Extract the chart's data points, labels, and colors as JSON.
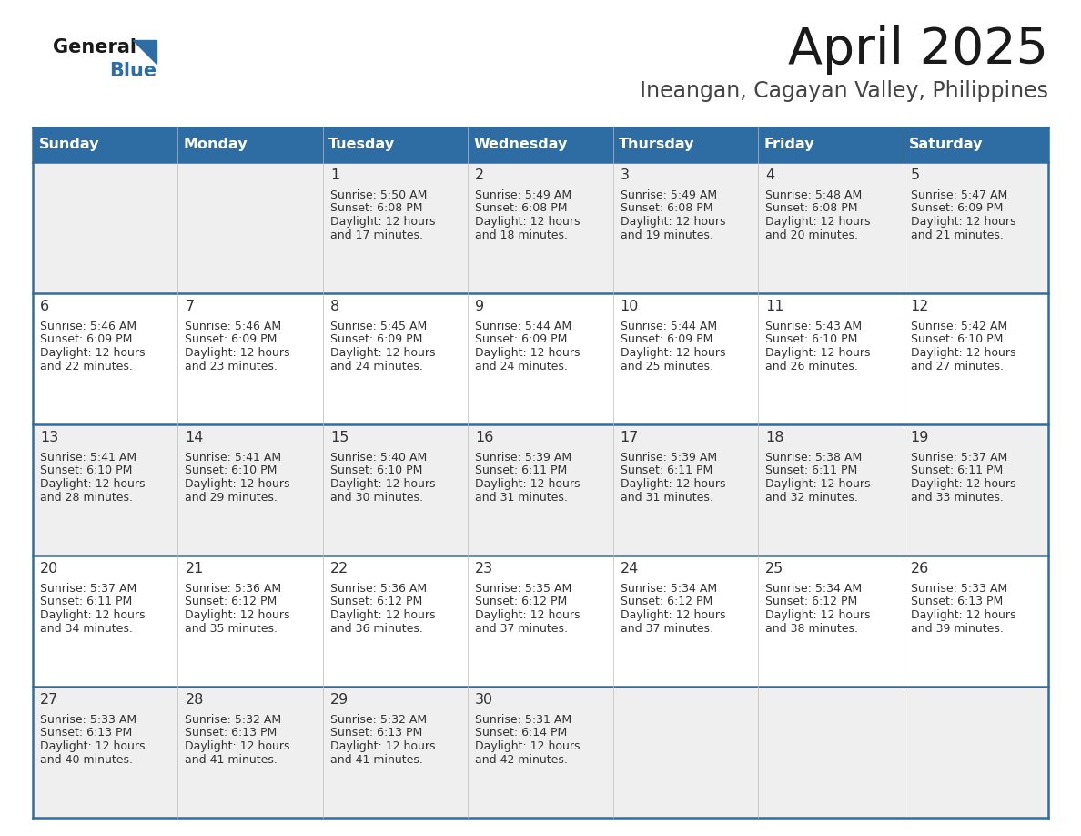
{
  "title": "April 2025",
  "subtitle": "Ineangan, Cagayan Valley, Philippines",
  "header_bg": "#2E6DA4",
  "header_text_color": "#FFFFFF",
  "cell_bg_odd": "#EFEFEF",
  "cell_bg_even": "#FFFFFF",
  "border_color": "#2E6DA4",
  "text_color": "#333333",
  "days_of_week": [
    "Sunday",
    "Monday",
    "Tuesday",
    "Wednesday",
    "Thursday",
    "Friday",
    "Saturday"
  ],
  "weeks": [
    [
      {
        "day": "",
        "sunrise": "",
        "sunset": "",
        "daylight": ""
      },
      {
        "day": "",
        "sunrise": "",
        "sunset": "",
        "daylight": ""
      },
      {
        "day": "1",
        "sunrise": "Sunrise: 5:50 AM",
        "sunset": "Sunset: 6:08 PM",
        "daylight": "Daylight: 12 hours\nand 17 minutes."
      },
      {
        "day": "2",
        "sunrise": "Sunrise: 5:49 AM",
        "sunset": "Sunset: 6:08 PM",
        "daylight": "Daylight: 12 hours\nand 18 minutes."
      },
      {
        "day": "3",
        "sunrise": "Sunrise: 5:49 AM",
        "sunset": "Sunset: 6:08 PM",
        "daylight": "Daylight: 12 hours\nand 19 minutes."
      },
      {
        "day": "4",
        "sunrise": "Sunrise: 5:48 AM",
        "sunset": "Sunset: 6:08 PM",
        "daylight": "Daylight: 12 hours\nand 20 minutes."
      },
      {
        "day": "5",
        "sunrise": "Sunrise: 5:47 AM",
        "sunset": "Sunset: 6:09 PM",
        "daylight": "Daylight: 12 hours\nand 21 minutes."
      }
    ],
    [
      {
        "day": "6",
        "sunrise": "Sunrise: 5:46 AM",
        "sunset": "Sunset: 6:09 PM",
        "daylight": "Daylight: 12 hours\nand 22 minutes."
      },
      {
        "day": "7",
        "sunrise": "Sunrise: 5:46 AM",
        "sunset": "Sunset: 6:09 PM",
        "daylight": "Daylight: 12 hours\nand 23 minutes."
      },
      {
        "day": "8",
        "sunrise": "Sunrise: 5:45 AM",
        "sunset": "Sunset: 6:09 PM",
        "daylight": "Daylight: 12 hours\nand 24 minutes."
      },
      {
        "day": "9",
        "sunrise": "Sunrise: 5:44 AM",
        "sunset": "Sunset: 6:09 PM",
        "daylight": "Daylight: 12 hours\nand 24 minutes."
      },
      {
        "day": "10",
        "sunrise": "Sunrise: 5:44 AM",
        "sunset": "Sunset: 6:09 PM",
        "daylight": "Daylight: 12 hours\nand 25 minutes."
      },
      {
        "day": "11",
        "sunrise": "Sunrise: 5:43 AM",
        "sunset": "Sunset: 6:10 PM",
        "daylight": "Daylight: 12 hours\nand 26 minutes."
      },
      {
        "day": "12",
        "sunrise": "Sunrise: 5:42 AM",
        "sunset": "Sunset: 6:10 PM",
        "daylight": "Daylight: 12 hours\nand 27 minutes."
      }
    ],
    [
      {
        "day": "13",
        "sunrise": "Sunrise: 5:41 AM",
        "sunset": "Sunset: 6:10 PM",
        "daylight": "Daylight: 12 hours\nand 28 minutes."
      },
      {
        "day": "14",
        "sunrise": "Sunrise: 5:41 AM",
        "sunset": "Sunset: 6:10 PM",
        "daylight": "Daylight: 12 hours\nand 29 minutes."
      },
      {
        "day": "15",
        "sunrise": "Sunrise: 5:40 AM",
        "sunset": "Sunset: 6:10 PM",
        "daylight": "Daylight: 12 hours\nand 30 minutes."
      },
      {
        "day": "16",
        "sunrise": "Sunrise: 5:39 AM",
        "sunset": "Sunset: 6:11 PM",
        "daylight": "Daylight: 12 hours\nand 31 minutes."
      },
      {
        "day": "17",
        "sunrise": "Sunrise: 5:39 AM",
        "sunset": "Sunset: 6:11 PM",
        "daylight": "Daylight: 12 hours\nand 31 minutes."
      },
      {
        "day": "18",
        "sunrise": "Sunrise: 5:38 AM",
        "sunset": "Sunset: 6:11 PM",
        "daylight": "Daylight: 12 hours\nand 32 minutes."
      },
      {
        "day": "19",
        "sunrise": "Sunrise: 5:37 AM",
        "sunset": "Sunset: 6:11 PM",
        "daylight": "Daylight: 12 hours\nand 33 minutes."
      }
    ],
    [
      {
        "day": "20",
        "sunrise": "Sunrise: 5:37 AM",
        "sunset": "Sunset: 6:11 PM",
        "daylight": "Daylight: 12 hours\nand 34 minutes."
      },
      {
        "day": "21",
        "sunrise": "Sunrise: 5:36 AM",
        "sunset": "Sunset: 6:12 PM",
        "daylight": "Daylight: 12 hours\nand 35 minutes."
      },
      {
        "day": "22",
        "sunrise": "Sunrise: 5:36 AM",
        "sunset": "Sunset: 6:12 PM",
        "daylight": "Daylight: 12 hours\nand 36 minutes."
      },
      {
        "day": "23",
        "sunrise": "Sunrise: 5:35 AM",
        "sunset": "Sunset: 6:12 PM",
        "daylight": "Daylight: 12 hours\nand 37 minutes."
      },
      {
        "day": "24",
        "sunrise": "Sunrise: 5:34 AM",
        "sunset": "Sunset: 6:12 PM",
        "daylight": "Daylight: 12 hours\nand 37 minutes."
      },
      {
        "day": "25",
        "sunrise": "Sunrise: 5:34 AM",
        "sunset": "Sunset: 6:12 PM",
        "daylight": "Daylight: 12 hours\nand 38 minutes."
      },
      {
        "day": "26",
        "sunrise": "Sunrise: 5:33 AM",
        "sunset": "Sunset: 6:13 PM",
        "daylight": "Daylight: 12 hours\nand 39 minutes."
      }
    ],
    [
      {
        "day": "27",
        "sunrise": "Sunrise: 5:33 AM",
        "sunset": "Sunset: 6:13 PM",
        "daylight": "Daylight: 12 hours\nand 40 minutes."
      },
      {
        "day": "28",
        "sunrise": "Sunrise: 5:32 AM",
        "sunset": "Sunset: 6:13 PM",
        "daylight": "Daylight: 12 hours\nand 41 minutes."
      },
      {
        "day": "29",
        "sunrise": "Sunrise: 5:32 AM",
        "sunset": "Sunset: 6:13 PM",
        "daylight": "Daylight: 12 hours\nand 41 minutes."
      },
      {
        "day": "30",
        "sunrise": "Sunrise: 5:31 AM",
        "sunset": "Sunset: 6:14 PM",
        "daylight": "Daylight: 12 hours\nand 42 minutes."
      },
      {
        "day": "",
        "sunrise": "",
        "sunset": "",
        "daylight": ""
      },
      {
        "day": "",
        "sunrise": "",
        "sunset": "",
        "daylight": ""
      },
      {
        "day": "",
        "sunrise": "",
        "sunset": "",
        "daylight": ""
      }
    ]
  ],
  "logo_triangle_color": "#2E6DA4",
  "fig_width": 11.88,
  "fig_height": 9.18,
  "dpi": 100
}
